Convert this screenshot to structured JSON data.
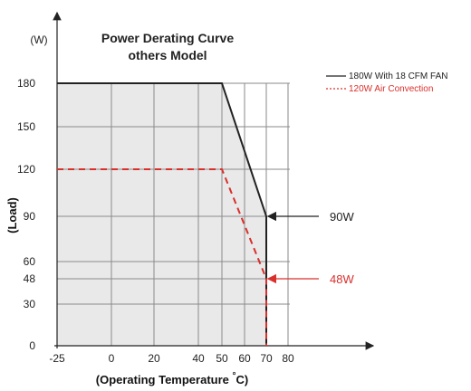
{
  "chart_data": {
    "type": "line",
    "title": [
      "Power Derating Curve",
      "others Model"
    ],
    "ylabel": "(Load)",
    "yunit": "(W)",
    "xlabel_prefix": "(Operating Temperature ",
    "xlabel_degree": "°",
    "xlabel_suffix": "C)",
    "x_ticks": [
      "-25",
      "0",
      "20",
      "40",
      "50",
      "60",
      "70",
      "80"
    ],
    "y_ticks": [
      "0",
      "30",
      "48",
      "60",
      "90",
      "120",
      "150",
      "180"
    ],
    "grid": true,
    "legend_position": "top-right",
    "series": [
      {
        "name": "180W With 18 CFM FAN",
        "color": "#222222",
        "style": "solid",
        "points": [
          [
            -25,
            180
          ],
          [
            50,
            180
          ],
          [
            70,
            90
          ],
          [
            70,
            0
          ]
        ]
      },
      {
        "name": "120W Air Convection",
        "color": "#d9302c",
        "style": "dashed",
        "points": [
          [
            -25,
            120
          ],
          [
            50,
            120
          ],
          [
            70,
            48
          ],
          [
            70,
            0
          ]
        ]
      }
    ],
    "annotations": [
      {
        "text": "90W",
        "x": 70,
        "y": 90,
        "color": "#222222"
      },
      {
        "text": "48W",
        "x": 70,
        "y": 48,
        "color": "#d9302c"
      }
    ]
  }
}
